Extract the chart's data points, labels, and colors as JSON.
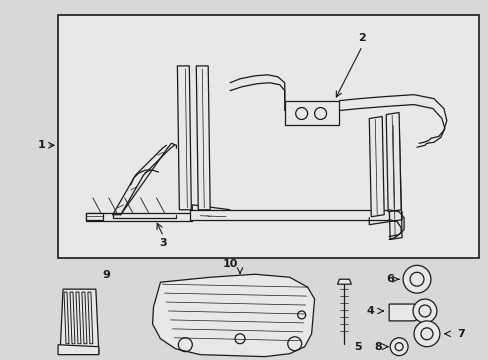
{
  "bg_color": "#d8d8d8",
  "box_bg": "#e8e8e8",
  "line_color": "#1a1a1a",
  "fig_width": 4.89,
  "fig_height": 3.6,
  "dpi": 100
}
